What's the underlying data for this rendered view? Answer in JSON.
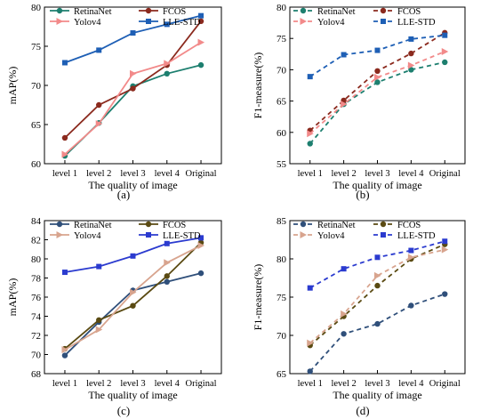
{
  "colors": {
    "RetinaNet_ab": "#1d7f6f",
    "FCOS_ab": "#8b2a1e",
    "Yolov4_ab": "#f28a8a",
    "LLE-STD_ab": "#1e5fb5",
    "RetinaNet_cd": "#2f4f7a",
    "FCOS_cd": "#5a4a12",
    "Yolov4_cd": "#d8a48e",
    "LLE-STD_cd": "#2b3bcf"
  },
  "captions": [
    "(a)",
    "(b)",
    "(c)",
    "(d)"
  ],
  "chart_data": [
    {
      "type": "line",
      "panel": "a",
      "categories": [
        "level 1",
        "level 2",
        "level 3",
        "level 4",
        "Original"
      ],
      "xlabel": "The quality of image",
      "ylabel": "mAP(%)",
      "ylim": [
        60,
        80
      ],
      "yticks": [
        60,
        65,
        70,
        75,
        80
      ],
      "linestyle": "solid",
      "legend": "top-left (2 columns)",
      "series": [
        {
          "name": "RetinaNet",
          "marker": "circle",
          "color": "#1d7f6f",
          "values": [
            61.0,
            65.2,
            69.9,
            71.5,
            72.6
          ]
        },
        {
          "name": "FCOS",
          "marker": "circle",
          "color": "#8b2a1e",
          "values": [
            63.3,
            67.5,
            69.6,
            72.6,
            78.2
          ]
        },
        {
          "name": "Yolov4",
          "marker": "triangle-right",
          "color": "#f28a8a",
          "values": [
            61.2,
            65.1,
            71.5,
            72.8,
            75.5
          ]
        },
        {
          "name": "LLE-STD",
          "marker": "square",
          "color": "#1e5fb5",
          "values": [
            72.9,
            74.5,
            76.7,
            77.8,
            78.9
          ]
        }
      ]
    },
    {
      "type": "line",
      "panel": "b",
      "categories": [
        "level 1",
        "level 2",
        "level 3",
        "level 4",
        "Original"
      ],
      "xlabel": "The quality of image",
      "ylabel": "F1-measure(%)",
      "ylim": [
        55,
        80
      ],
      "yticks": [
        55,
        60,
        65,
        70,
        75,
        80
      ],
      "linestyle": "dashed",
      "legend": "top (2 columns)",
      "series": [
        {
          "name": "RetinaNet",
          "marker": "circle",
          "color": "#1d7f6f",
          "values": [
            58.2,
            64.5,
            68.0,
            70.0,
            71.2
          ]
        },
        {
          "name": "FCOS",
          "marker": "circle",
          "color": "#8b2a1e",
          "values": [
            60.3,
            65.1,
            69.8,
            72.6,
            75.9
          ]
        },
        {
          "name": "Yolov4",
          "marker": "triangle-right",
          "color": "#f28a8a",
          "values": [
            59.8,
            64.5,
            68.8,
            70.7,
            72.9
          ]
        },
        {
          "name": "LLE-STD",
          "marker": "square",
          "color": "#1e5fb5",
          "values": [
            68.9,
            72.4,
            73.1,
            74.9,
            75.5
          ]
        }
      ]
    },
    {
      "type": "line",
      "panel": "c",
      "categories": [
        "level 1",
        "level 2",
        "level 3",
        "level 4",
        "Original"
      ],
      "xlabel": "The quality of image",
      "ylabel": "mAP(%)",
      "ylim": [
        68,
        84
      ],
      "yticks": [
        68,
        70,
        72,
        74,
        76,
        78,
        80,
        82,
        84
      ],
      "linestyle": "solid",
      "legend": "top-left (2 columns)",
      "series": [
        {
          "name": "RetinaNet",
          "marker": "circle",
          "color": "#2f4f7a",
          "values": [
            69.9,
            73.4,
            76.7,
            77.6,
            78.5
          ]
        },
        {
          "name": "FCOS",
          "marker": "circle",
          "color": "#5a4a12",
          "values": [
            70.6,
            73.6,
            75.1,
            78.2,
            81.7
          ]
        },
        {
          "name": "Yolov4",
          "marker": "triangle-right",
          "color": "#d8a48e",
          "values": [
            70.5,
            72.6,
            76.5,
            79.6,
            81.4
          ]
        },
        {
          "name": "LLE-STD",
          "marker": "square",
          "color": "#2b3bcf",
          "values": [
            78.6,
            79.2,
            80.3,
            81.6,
            82.2
          ]
        }
      ]
    },
    {
      "type": "line",
      "panel": "d",
      "categories": [
        "level 1",
        "level 2",
        "level 3",
        "level 4",
        "Original"
      ],
      "xlabel": "The quality of image",
      "ylabel": "F1-measure(%)",
      "ylim": [
        65,
        85
      ],
      "yticks": [
        65,
        70,
        75,
        80,
        85
      ],
      "linestyle": "dashed",
      "legend": "top (2 columns)",
      "series": [
        {
          "name": "RetinaNet",
          "marker": "circle",
          "color": "#2f4f7a",
          "values": [
            65.3,
            70.2,
            71.5,
            73.9,
            75.4
          ]
        },
        {
          "name": "FCOS",
          "marker": "circle",
          "color": "#5a4a12",
          "values": [
            68.7,
            72.5,
            76.5,
            80.0,
            81.9
          ]
        },
        {
          "name": "Yolov4",
          "marker": "triangle-right",
          "color": "#d8a48e",
          "values": [
            69.0,
            72.8,
            77.8,
            80.2,
            81.2
          ]
        },
        {
          "name": "LLE-STD",
          "marker": "square",
          "color": "#2b3bcf",
          "values": [
            76.2,
            78.7,
            80.2,
            81.1,
            82.3
          ]
        }
      ]
    }
  ]
}
